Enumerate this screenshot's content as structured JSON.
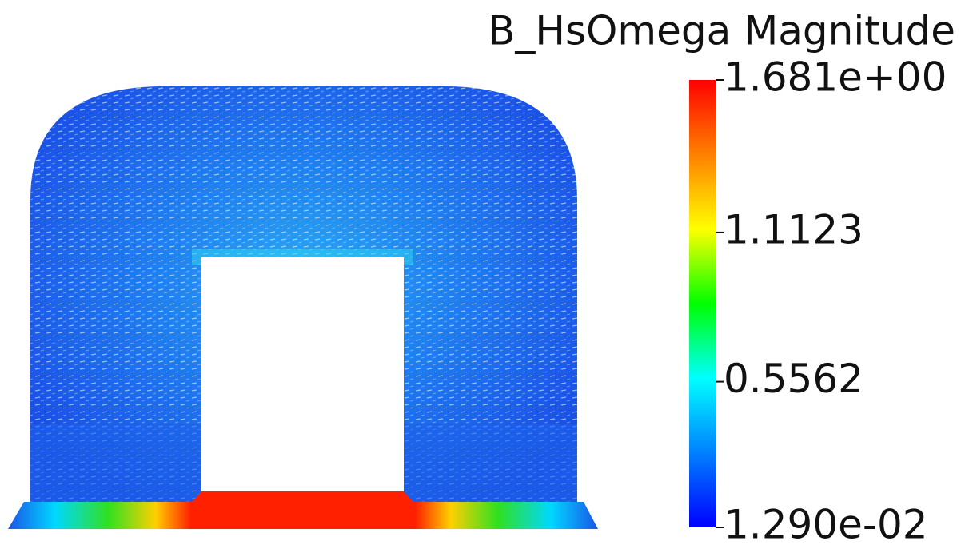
{
  "title": "B_HsOmega Magnitude",
  "colorbar": {
    "range": [
      0.0129,
      1.681
    ],
    "ticks": [
      {
        "value": 1.681,
        "label": "1.681e+00"
      },
      1.1123,
      0.5562,
      {
        "value": 0.0129,
        "label": "1.290e-02"
      }
    ],
    "colormap": [
      "#0000ff",
      "#0080ff",
      "#00ffff",
      "#00ff00",
      "#ffff00",
      "#ff8000",
      "#ff0000"
    ]
  }
}
